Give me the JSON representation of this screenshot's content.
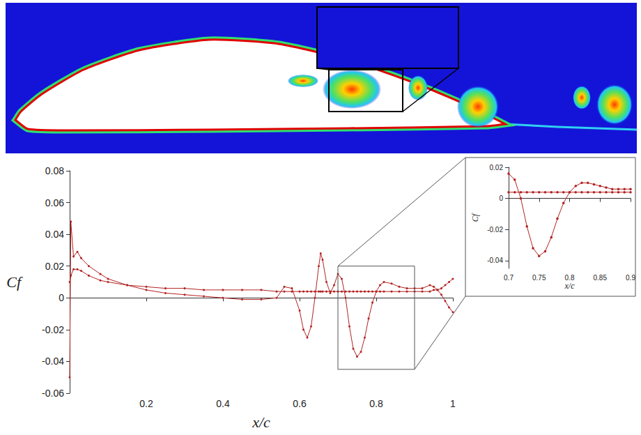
{
  "chart_data": [
    {
      "type": "line",
      "xlabel": "x/c",
      "ylabel": "Cf",
      "x": [
        0,
        0.003,
        0.01,
        0.02,
        0.03,
        0.05,
        0.08,
        0.1,
        0.15,
        0.2,
        0.25,
        0.3,
        0.35,
        0.4,
        0.45,
        0.5,
        0.54,
        0.56,
        0.58,
        0.6,
        0.61,
        0.62,
        0.63,
        0.64,
        0.65,
        0.655,
        0.66,
        0.67,
        0.68,
        0.69,
        0.7,
        0.71,
        0.72,
        0.73,
        0.74,
        0.75,
        0.76,
        0.77,
        0.78,
        0.79,
        0.8,
        0.81,
        0.82,
        0.84,
        0.86,
        0.88,
        0.9,
        0.92,
        0.94,
        0.95,
        0.96,
        0.97,
        0.98,
        0.99,
        1
      ],
      "series": [
        {
          "color": "#b22222",
          "marker": "circle",
          "line_style": "solid",
          "values": [
            -0.05,
            0.048,
            0.026,
            0.029,
            0.025,
            0.02,
            0.015,
            0.012,
            0.008,
            0.005,
            0.003,
            0.002,
            0.001,
            0,
            -0.001,
            -0.001,
            0,
            0.007,
            0.006,
            -0.008,
            -0.02,
            -0.025,
            -0.018,
            0,
            0.02,
            0.028,
            0.024,
            0.01,
            0.003,
            0.008,
            0.015,
            0.012,
            0,
            -0.018,
            -0.032,
            -0.037,
            -0.034,
            -0.025,
            -0.013,
            -0.003,
            0.004,
            0.008,
            0.01,
            0.009,
            0.007,
            0.006,
            0.006,
            0.006,
            0.008,
            0.007,
            0.005,
            0.002,
            -0.002,
            -0.006,
            -0.009
          ]
        },
        {
          "color": "#b22222",
          "marker": "circle",
          "line_style": "solid",
          "values": [
            0.01,
            0.014,
            0.018,
            0.018,
            0.017,
            0.014,
            0.011,
            0.01,
            0.008,
            0.007,
            0.006,
            0.006,
            0.005,
            0.005,
            0.005,
            0.005,
            0.004,
            0.004,
            0.004,
            0.004,
            0.004,
            0.004,
            0.004,
            0.004,
            0.004,
            0.004,
            0.004,
            0.004,
            0.004,
            0.004,
            0.004,
            0.004,
            0.004,
            0.004,
            0.004,
            0.004,
            0.004,
            0.004,
            0.004,
            0.004,
            0.004,
            0.004,
            0.004,
            0.004,
            0.004,
            0.004,
            0.004,
            0.004,
            0.004,
            0.005,
            0.005,
            0.006,
            0.008,
            0.01,
            0.012
          ]
        }
      ],
      "xlim": [
        0,
        1
      ],
      "xticks": [
        0.2,
        0.4,
        0.6,
        0.8,
        1
      ],
      "ylim": [
        -0.06,
        0.08
      ],
      "yticks": [
        -0.06,
        -0.04,
        -0.02,
        0,
        0.02,
        0.04,
        0.06,
        0.08
      ],
      "grid": false
    },
    {
      "type": "line",
      "xlabel": "x/c",
      "ylabel": "Cf",
      "x": [
        0.7,
        0.71,
        0.72,
        0.73,
        0.74,
        0.75,
        0.76,
        0.77,
        0.78,
        0.79,
        0.8,
        0.81,
        0.82,
        0.83,
        0.84,
        0.85,
        0.86,
        0.87,
        0.88,
        0.89,
        0.9
      ],
      "series": [
        {
          "color": "#b22222",
          "marker": "circle",
          "line_style": "solid",
          "values": [
            0.016,
            0.012,
            0,
            -0.018,
            -0.032,
            -0.037,
            -0.034,
            -0.025,
            -0.013,
            -0.003,
            0.004,
            0.008,
            0.01,
            0.01,
            0.009,
            0.008,
            0.007,
            0.006,
            0.006,
            0.006,
            0.006
          ]
        },
        {
          "color": "#b22222",
          "marker": "circle",
          "line_style": "solid",
          "values": [
            0.004,
            0.004,
            0.004,
            0.004,
            0.004,
            0.004,
            0.004,
            0.004,
            0.004,
            0.004,
            0.004,
            0.004,
            0.004,
            0.004,
            0.004,
            0.004,
            0.004,
            0.004,
            0.004,
            0.004,
            0.004
          ]
        }
      ],
      "xlim": [
        0.7,
        0.9
      ],
      "xticks": [
        0.7,
        0.75,
        0.8,
        0.85,
        0.9
      ],
      "ylim": [
        -0.045,
        0.02
      ],
      "yticks": [
        -0.04,
        -0.02,
        0,
        0.02
      ],
      "grid": false
    }
  ]
}
